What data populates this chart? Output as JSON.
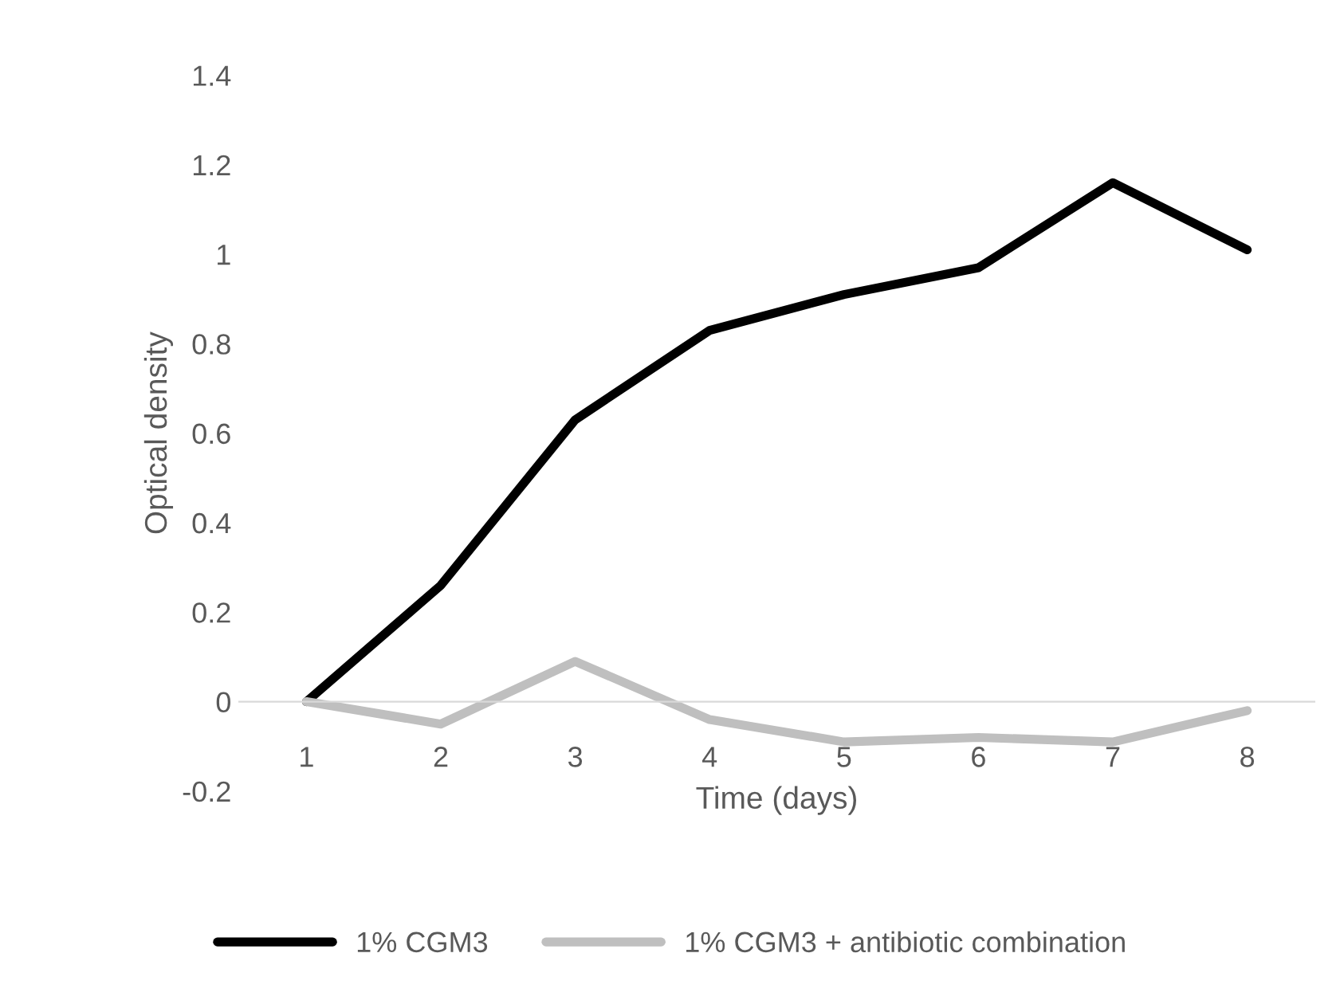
{
  "chart_data": {
    "type": "line",
    "xlabel": "Time (days)",
    "ylabel": "Optical density",
    "categories": [
      "1",
      "2",
      "3",
      "4",
      "5",
      "6",
      "7",
      "8"
    ],
    "series": [
      {
        "name": "1% CGM3",
        "color": "#000000",
        "values": [
          0,
          0.26,
          0.63,
          0.83,
          0.91,
          0.97,
          1.16,
          1.01
        ]
      },
      {
        "name": "1% CGM3 + antibiotic combination",
        "color": "#bfbfbf",
        "values": [
          0,
          -0.05,
          0.09,
          -0.04,
          -0.09,
          -0.08,
          -0.09,
          -0.02
        ]
      }
    ],
    "ylim": [
      -0.2,
      1.4
    ],
    "yticks": [
      -0.2,
      0,
      0.2,
      0.4,
      0.6,
      0.8,
      1,
      1.2,
      1.4
    ],
    "grid": false,
    "legend": "bottom",
    "marker": "none",
    "line_style": "solid"
  }
}
